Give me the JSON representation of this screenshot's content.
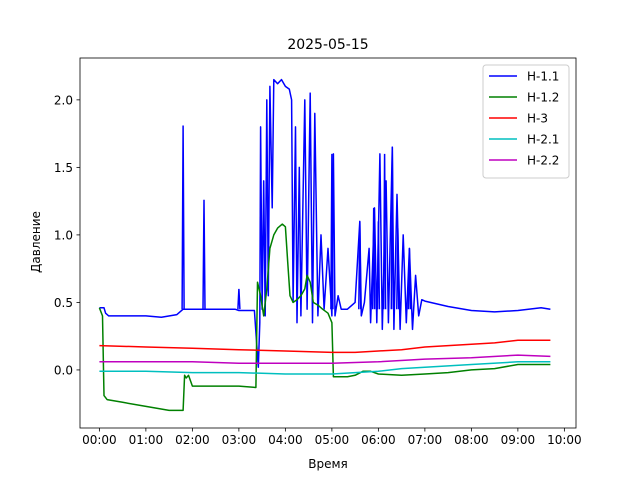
{
  "chart_data": {
    "type": "line",
    "title": "2025-05-15",
    "xlabel": "Время",
    "ylabel": "Давление",
    "x_unit": "time of day (HH:MM)",
    "xlim": [
      "23:35",
      "10:15"
    ],
    "ylim": [
      -0.43,
      2.31
    ],
    "x_ticks": [
      "00:00",
      "01:00",
      "02:00",
      "03:00",
      "04:00",
      "05:00",
      "06:00",
      "07:00",
      "08:00",
      "09:00",
      "10:00"
    ],
    "y_ticks": [
      0.0,
      0.5,
      1.0,
      1.5,
      2.0
    ],
    "y_tick_labels": [
      "0.0",
      "0.5",
      "1.0",
      "1.5",
      "2.0"
    ],
    "grid": false,
    "legend_position": "top-right",
    "series": [
      {
        "name": "H-1.1",
        "color": "#0000ff",
        "points": [
          [
            "00:00",
            0.46
          ],
          [
            "00:06",
            0.46
          ],
          [
            "00:08",
            0.42
          ],
          [
            "00:12",
            0.4
          ],
          [
            "00:30",
            0.4
          ],
          [
            "01:00",
            0.4
          ],
          [
            "01:20",
            0.39
          ],
          [
            "01:40",
            0.41
          ],
          [
            "01:48",
            0.45
          ],
          [
            "02:00",
            0.45
          ],
          [
            "02:30",
            0.45
          ],
          [
            "02:55",
            0.45
          ],
          [
            "03:00",
            0.44
          ],
          [
            "03:20",
            0.44
          ],
          [
            "03:25",
            0.02
          ],
          [
            "03:27",
            0.35
          ],
          [
            "03:28",
            1.8
          ],
          [
            "03:30",
            0.45
          ],
          [
            "03:32",
            1.4
          ],
          [
            "03:34",
            0.4
          ],
          [
            "03:36",
            2.0
          ],
          [
            "03:38",
            0.55
          ],
          [
            "03:40",
            2.1
          ],
          [
            "03:43",
            1.2
          ],
          [
            "03:45",
            2.15
          ],
          [
            "03:50",
            2.12
          ],
          [
            "03:55",
            2.15
          ],
          [
            "04:00",
            2.1
          ],
          [
            "04:05",
            2.08
          ],
          [
            "04:08",
            2.0
          ],
          [
            "04:10",
            0.5
          ],
          [
            "04:13",
            1.8
          ],
          [
            "04:15",
            0.35
          ],
          [
            "04:18",
            1.5
          ],
          [
            "04:20",
            0.4
          ],
          [
            "04:25",
            2.0
          ],
          [
            "04:28",
            0.45
          ],
          [
            "04:32",
            2.05
          ],
          [
            "04:35",
            0.35
          ],
          [
            "04:38",
            1.9
          ],
          [
            "04:42",
            0.4
          ],
          [
            "04:46",
            1.0
          ],
          [
            "04:50",
            0.45
          ],
          [
            "04:55",
            0.9
          ],
          [
            "05:00",
            0.4
          ],
          [
            "05:02",
            1.6
          ],
          [
            "05:04",
            0.4
          ],
          [
            "05:08",
            0.55
          ],
          [
            "05:12",
            0.45
          ],
          [
            "05:20",
            0.45
          ],
          [
            "05:30",
            0.5
          ],
          [
            "05:36",
            1.1
          ],
          [
            "05:38",
            0.4
          ],
          [
            "05:42",
            0.5
          ],
          [
            "05:48",
            0.9
          ],
          [
            "05:50",
            0.35
          ],
          [
            "05:55",
            1.2
          ],
          [
            "05:58",
            0.35
          ],
          [
            "06:02",
            1.6
          ],
          [
            "06:05",
            0.3
          ],
          [
            "06:10",
            1.4
          ],
          [
            "06:13",
            0.35
          ],
          [
            "06:18",
            1.65
          ],
          [
            "06:20",
            0.3
          ],
          [
            "06:24",
            1.3
          ],
          [
            "06:28",
            0.3
          ],
          [
            "06:32",
            1.0
          ],
          [
            "06:36",
            0.35
          ],
          [
            "06:40",
            0.9
          ],
          [
            "06:44",
            0.3
          ],
          [
            "06:48",
            0.7
          ],
          [
            "06:52",
            0.4
          ],
          [
            "06:56",
            0.52
          ],
          [
            "07:00",
            0.51
          ],
          [
            "07:30",
            0.47
          ],
          [
            "08:00",
            0.44
          ],
          [
            "08:30",
            0.43
          ],
          [
            "09:00",
            0.44
          ],
          [
            "09:30",
            0.46
          ],
          [
            "09:42",
            0.45
          ]
        ],
        "spikes": [
          [
            "01:48",
            1.81
          ],
          [
            "02:15",
            1.26
          ],
          [
            "03:00",
            0.6
          ],
          [
            "05:00",
            1.6
          ],
          [
            "05:36",
            1.1
          ],
          [
            "05:54",
            1.2
          ],
          [
            "06:00",
            1.1
          ],
          [
            "06:08",
            1.6
          ],
          [
            "06:18",
            1.65
          ],
          [
            "06:25",
            1.05
          ],
          [
            "06:40",
            0.9
          ]
        ]
      },
      {
        "name": "H-1.2",
        "color": "#008000",
        "points": [
          [
            "00:00",
            0.46
          ],
          [
            "00:04",
            0.4
          ],
          [
            "00:06",
            -0.19
          ],
          [
            "00:10",
            -0.22
          ],
          [
            "00:30",
            -0.24
          ],
          [
            "01:00",
            -0.27
          ],
          [
            "01:30",
            -0.3
          ],
          [
            "01:48",
            -0.3
          ],
          [
            "01:50",
            -0.04
          ],
          [
            "01:52",
            -0.06
          ],
          [
            "01:55",
            -0.04
          ],
          [
            "02:00",
            -0.12
          ],
          [
            "02:30",
            -0.12
          ],
          [
            "03:00",
            -0.12
          ],
          [
            "03:22",
            -0.13
          ],
          [
            "03:24",
            0.65
          ],
          [
            "03:28",
            0.55
          ],
          [
            "03:32",
            0.4
          ],
          [
            "03:36",
            0.6
          ],
          [
            "03:40",
            0.9
          ],
          [
            "03:45",
            1.0
          ],
          [
            "03:50",
            1.05
          ],
          [
            "03:56",
            1.08
          ],
          [
            "04:00",
            1.06
          ],
          [
            "04:03",
            0.8
          ],
          [
            "04:06",
            0.55
          ],
          [
            "04:10",
            0.5
          ],
          [
            "04:15",
            0.52
          ],
          [
            "04:20",
            0.55
          ],
          [
            "04:25",
            0.6
          ],
          [
            "04:28",
            0.7
          ],
          [
            "04:32",
            0.65
          ],
          [
            "04:36",
            0.5
          ],
          [
            "04:42",
            0.48
          ],
          [
            "04:48",
            0.45
          ],
          [
            "04:55",
            0.42
          ],
          [
            "05:00",
            0.35
          ],
          [
            "05:02",
            -0.05
          ],
          [
            "05:10",
            -0.05
          ],
          [
            "05:20",
            -0.05
          ],
          [
            "05:30",
            -0.04
          ],
          [
            "05:40",
            -0.01
          ],
          [
            "05:50",
            -0.01
          ],
          [
            "06:00",
            -0.03
          ],
          [
            "06:30",
            -0.04
          ],
          [
            "07:00",
            -0.03
          ],
          [
            "07:30",
            -0.02
          ],
          [
            "08:00",
            0.0
          ],
          [
            "08:30",
            0.01
          ],
          [
            "09:00",
            0.04
          ],
          [
            "09:42",
            0.04
          ]
        ]
      },
      {
        "name": "H-3",
        "color": "#ff0000",
        "points": [
          [
            "00:00",
            0.18
          ],
          [
            "01:00",
            0.17
          ],
          [
            "02:00",
            0.16
          ],
          [
            "03:00",
            0.15
          ],
          [
            "04:00",
            0.14
          ],
          [
            "05:00",
            0.13
          ],
          [
            "05:30",
            0.13
          ],
          [
            "06:00",
            0.14
          ],
          [
            "06:30",
            0.15
          ],
          [
            "07:00",
            0.17
          ],
          [
            "08:00",
            0.19
          ],
          [
            "08:30",
            0.2
          ],
          [
            "09:00",
            0.22
          ],
          [
            "09:42",
            0.22
          ]
        ]
      },
      {
        "name": "H-2.1",
        "color": "#00bfbf",
        "points": [
          [
            "00:00",
            -0.01
          ],
          [
            "01:00",
            -0.01
          ],
          [
            "02:00",
            -0.02
          ],
          [
            "03:00",
            -0.02
          ],
          [
            "04:00",
            -0.03
          ],
          [
            "05:00",
            -0.03
          ],
          [
            "06:00",
            -0.01
          ],
          [
            "06:30",
            0.01
          ],
          [
            "07:00",
            0.02
          ],
          [
            "08:00",
            0.04
          ],
          [
            "09:00",
            0.06
          ],
          [
            "09:42",
            0.06
          ]
        ]
      },
      {
        "name": "H-2.2",
        "color": "#bf00bf",
        "points": [
          [
            "00:00",
            0.06
          ],
          [
            "01:00",
            0.06
          ],
          [
            "02:00",
            0.06
          ],
          [
            "03:00",
            0.05
          ],
          [
            "04:00",
            0.05
          ],
          [
            "05:00",
            0.05
          ],
          [
            "06:00",
            0.06
          ],
          [
            "07:00",
            0.08
          ],
          [
            "08:00",
            0.09
          ],
          [
            "09:00",
            0.11
          ],
          [
            "09:42",
            0.1
          ]
        ]
      }
    ]
  }
}
